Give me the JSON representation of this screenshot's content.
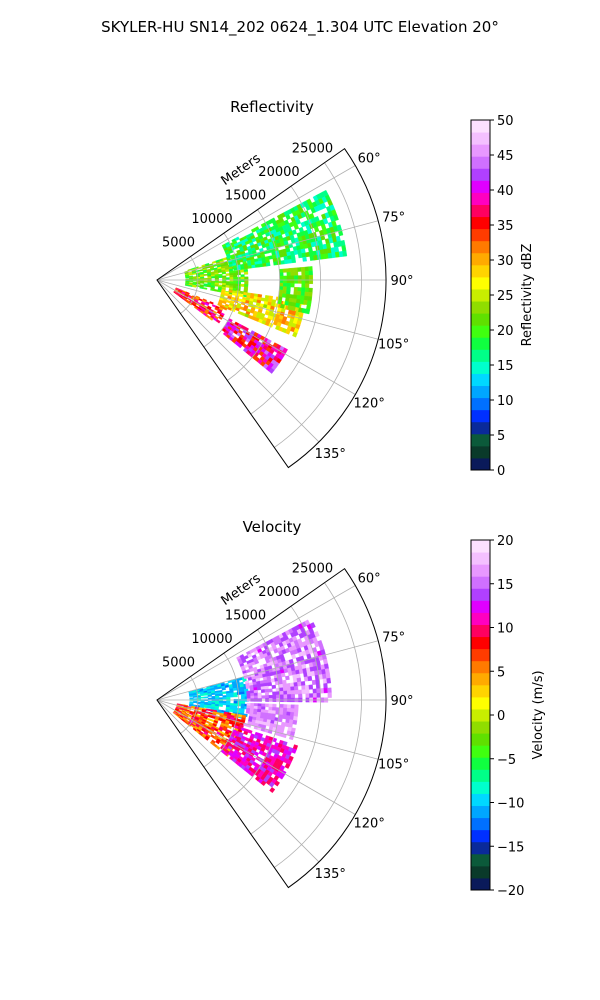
{
  "suptitle": "SKYLER-HU  SN14_202  0624_1.304 UTC Elevation 20°",
  "chart_data": [
    {
      "type": "heatmap",
      "title": "Reflectivity",
      "r_label": "Meters",
      "r_ticks": [
        "5000",
        "10000",
        "15000",
        "20000",
        "25000"
      ],
      "r_max": 28000,
      "theta_ticks": [
        "60°",
        "75°",
        "90°",
        "105°",
        "120°",
        "135°"
      ],
      "theta_range_deg": [
        55,
        145
      ],
      "grid": true,
      "colorbar": {
        "label": "Reflectivity dBZ",
        "min": 0,
        "max": 50,
        "ticks": [
          "0",
          "5",
          "10",
          "15",
          "20",
          "25",
          "30",
          "35",
          "40",
          "45",
          "50"
        ],
        "colors": [
          "#0a1a5a",
          "#0a3a2a",
          "#0b5a3a",
          "#0a2a9a",
          "#0030ff",
          "#0070ff",
          "#00a6ff",
          "#00d8ff",
          "#00ffcc",
          "#00ff88",
          "#10ff40",
          "#40ff10",
          "#60e000",
          "#90dd00",
          "#c8ee00",
          "#ffff00",
          "#ffd400",
          "#ffaa00",
          "#ff7a00",
          "#ff3c00",
          "#ff0000",
          "#ff0060",
          "#ff00c0",
          "#e000ff",
          "#b040ff",
          "#d070ff",
          "#e898ff",
          "#f4c0ff",
          "#fde0ff"
        ],
        "cmap": "pyart_NWSRef"
      },
      "echo_regions": [
        {
          "az": [
            72,
            100
          ],
          "r": [
            3500,
            11000
          ],
          "value_range": [
            18,
            26
          ]
        },
        {
          "az": [
            98,
            112
          ],
          "r": [
            8000,
            18000
          ],
          "value_range": [
            24,
            32
          ]
        },
        {
          "az": [
            112,
            125
          ],
          "r": [
            2500,
            9000
          ],
          "value_range": [
            30,
            40
          ]
        },
        {
          "az": [
            118,
            128
          ],
          "r": [
            10000,
            18000
          ],
          "value_range": [
            33,
            44
          ]
        },
        {
          "az": [
            62,
            82
          ],
          "r": [
            9000,
            23000
          ],
          "value_range": [
            14,
            22
          ]
        },
        {
          "az": [
            85,
            102
          ],
          "r": [
            15000,
            19000
          ],
          "value_range": [
            18,
            24
          ]
        }
      ]
    },
    {
      "type": "heatmap",
      "title": "Velocity",
      "r_label": "Meters",
      "r_ticks": [
        "5000",
        "10000",
        "15000",
        "20000",
        "25000"
      ],
      "r_max": 28000,
      "theta_ticks": [
        "60°",
        "75°",
        "90°",
        "105°",
        "120°",
        "135°"
      ],
      "theta_range_deg": [
        55,
        145
      ],
      "grid": true,
      "colorbar": {
        "label": "Velocity (m/s)",
        "min": -20,
        "max": 20,
        "ticks": [
          "−20",
          "−15",
          "−10",
          "−5",
          "0",
          "5",
          "10",
          "15",
          "20"
        ],
        "colors": [
          "#0a1a5a",
          "#0a3a2a",
          "#0b5a3a",
          "#0a2a9a",
          "#0030ff",
          "#0070ff",
          "#00a6ff",
          "#00d8ff",
          "#00ffcc",
          "#00ff88",
          "#10ff40",
          "#40ff10",
          "#60e000",
          "#90dd00",
          "#c8ee00",
          "#ffff00",
          "#ffd400",
          "#ffaa00",
          "#ff7a00",
          "#ff3c00",
          "#ff0000",
          "#ff0060",
          "#ff00c0",
          "#e000ff",
          "#b040ff",
          "#d070ff",
          "#e898ff",
          "#f4c0ff",
          "#fde0ff"
        ],
        "cmap": "pyart_BuDRd18"
      },
      "echo_regions": [
        {
          "az": [
            75,
            102
          ],
          "r": [
            4000,
            11000
          ],
          "value_range": [
            -12,
            -8
          ]
        },
        {
          "az": [
            62,
            90
          ],
          "r": [
            11000,
            21000
          ],
          "value_range": [
            13,
            18
          ]
        },
        {
          "az": [
            100,
            128
          ],
          "r": [
            2500,
            11000
          ],
          "value_range": [
            3,
            11
          ]
        },
        {
          "az": [
            108,
            128
          ],
          "r": [
            10000,
            18000
          ],
          "value_range": [
            9,
            14
          ]
        },
        {
          "az": [
            92,
            106
          ],
          "r": [
            11000,
            17000
          ],
          "value_range": [
            14,
            18
          ]
        }
      ]
    }
  ]
}
